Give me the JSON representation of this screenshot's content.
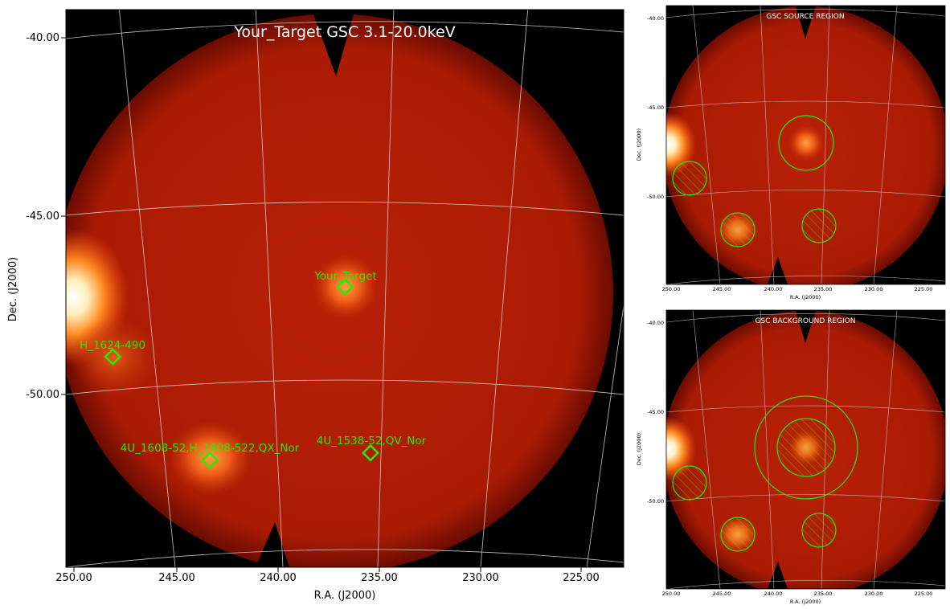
{
  "main": {
    "title": "Your_Target GSC 3.1-20.0keV",
    "xlabel": "R.A. (J2000)",
    "ylabel": "Dec. (J2000)",
    "xticks": [
      "250.00",
      "245.00",
      "240.00",
      "235.00",
      "230.00",
      "225.00"
    ],
    "yticks": [
      "-40.00",
      "-45.00",
      "-50.00"
    ],
    "sources": [
      {
        "label": "Your_Target"
      },
      {
        "label": "H_1624-490"
      },
      {
        "label": "4U_1608-52,H_1608-522,QX_Nor"
      },
      {
        "label": "4U_1538-52,QV_Nor"
      }
    ]
  },
  "panel_source": {
    "title": "GSC SOURCE REGION",
    "xlabel": "R.A. (J2000)",
    "ylabel": "Dec. (J2000)",
    "xticks": [
      "250.00",
      "245.00",
      "240.00",
      "235.00",
      "230.00",
      "225.00"
    ],
    "yticks": [
      "-40.00",
      "-45.00",
      "-50.00"
    ]
  },
  "panel_background": {
    "title": "GSC BACKGROUND REGION",
    "xlabel": "R.A. (J2000)",
    "ylabel": "Dec. (J2000)",
    "xticks": [
      "250.00",
      "245.00",
      "240.00",
      "235.00",
      "230.00",
      "225.00"
    ],
    "yticks": [
      "-40.00",
      "-45.00",
      "-50.00"
    ]
  },
  "colors": {
    "background": "#000000",
    "image_base": "#b01e05",
    "hot": "#ffffff",
    "region": "#22ee00",
    "grid": "#d8d8d8"
  }
}
